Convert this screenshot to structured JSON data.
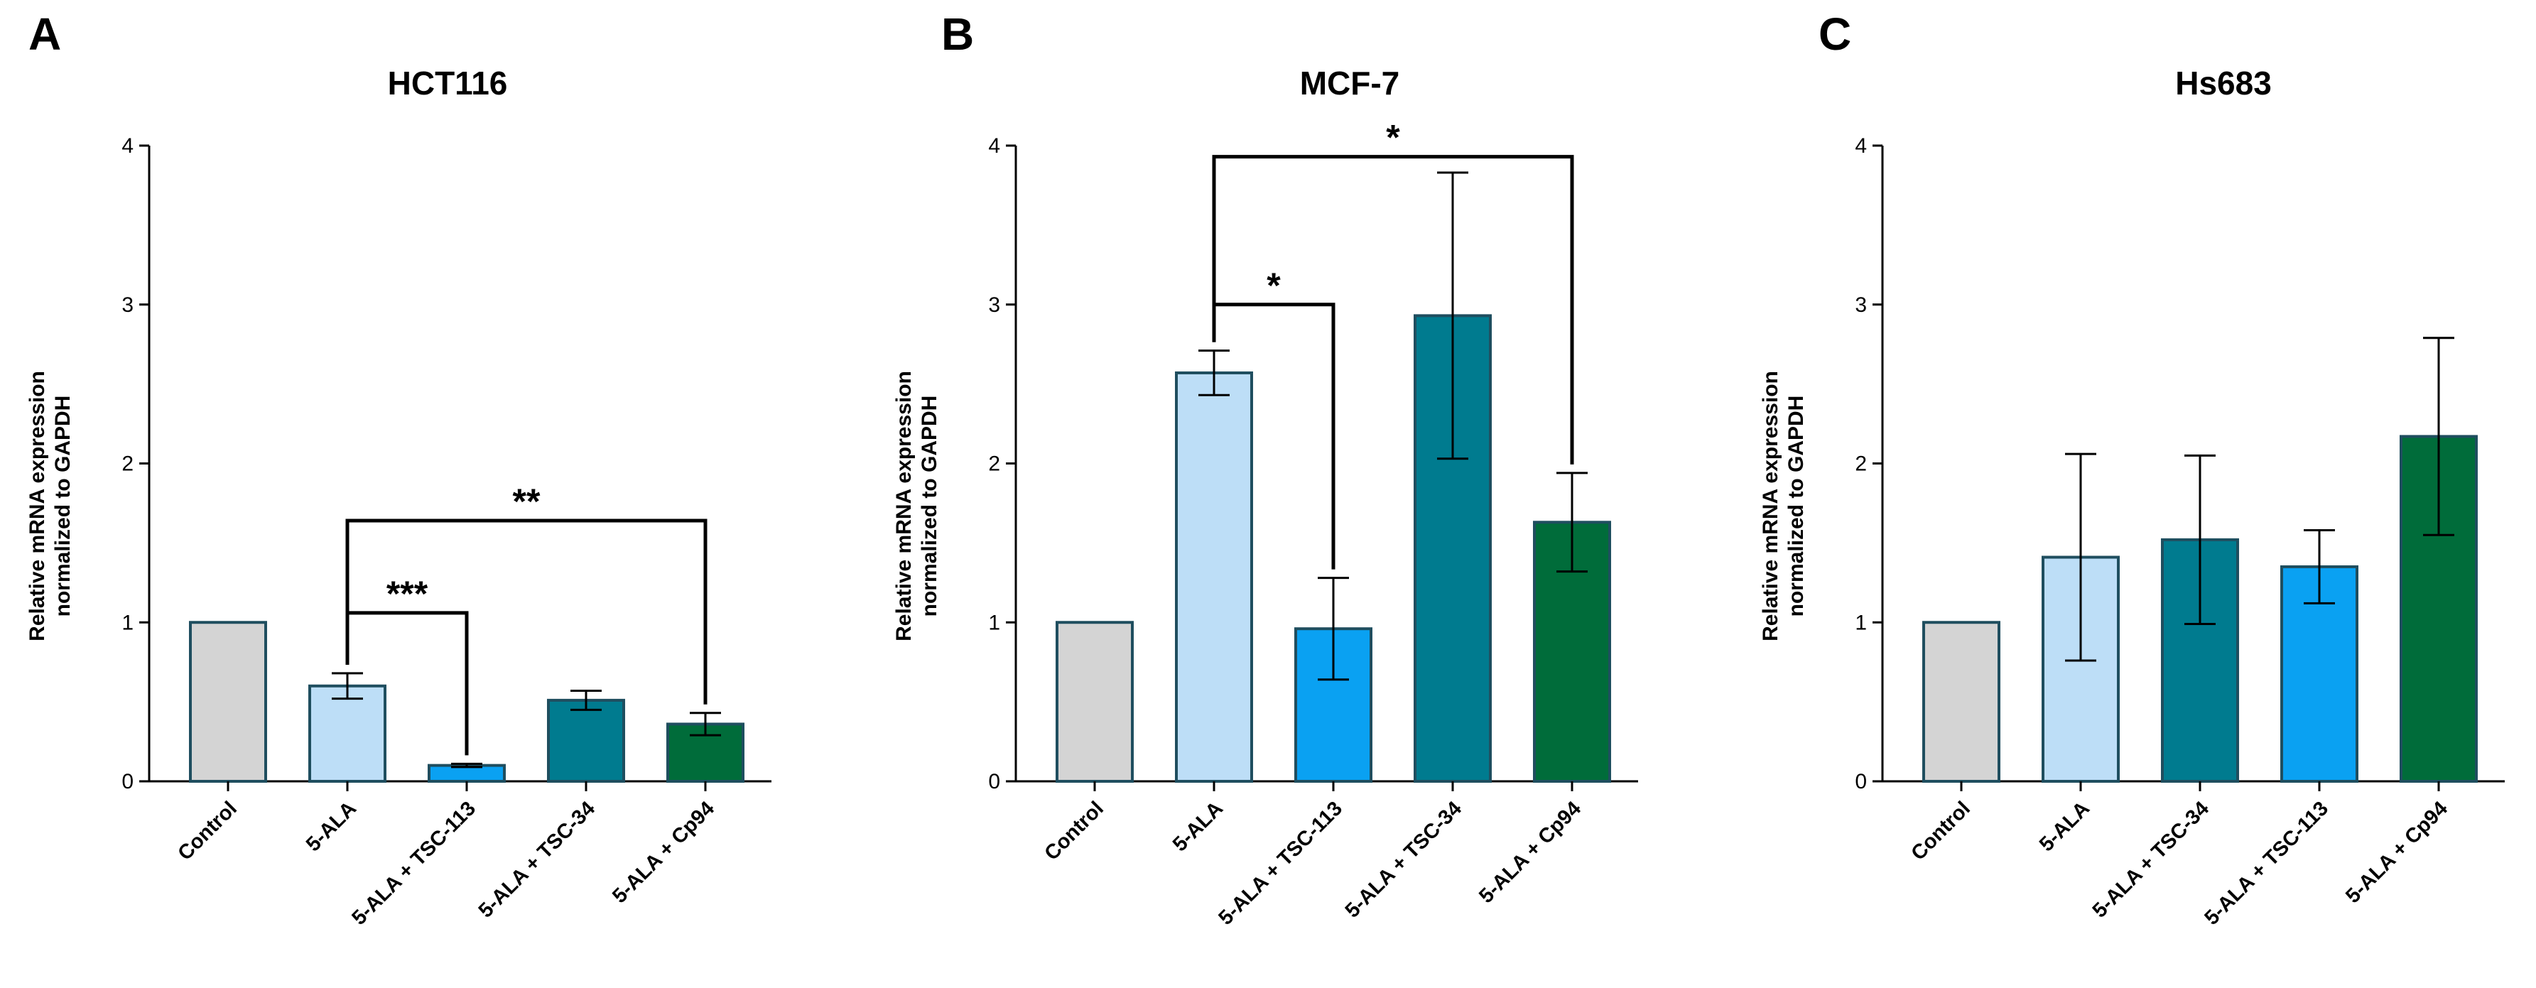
{
  "chart_data": [
    {
      "type": "bar",
      "panel": "A",
      "title": "HCT116",
      "ylabel": [
        "Relative mRNA expression",
        "normalized to GAPDH"
      ],
      "ylim": [
        0,
        4
      ],
      "yticks": [
        0,
        1,
        2,
        3,
        4
      ],
      "categories": [
        "Control",
        "5-ALA",
        "5-ALA + TSC-113",
        "5-ALA + TSC-34",
        "5-ALA + Cp94"
      ],
      "values": [
        1.0,
        0.6,
        0.1,
        0.51,
        0.36
      ],
      "errors": [
        0,
        0.08,
        0.01,
        0.06,
        0.07
      ],
      "colors": [
        "#d4d4d4",
        "#bddef7",
        "#0aa1f2",
        "#007b8f",
        "#006c3a"
      ],
      "significance": [
        {
          "from": 1,
          "to": 2,
          "label": "***",
          "y": 1.06
        },
        {
          "from": 1,
          "to": 4,
          "label": "**",
          "y": 1.64
        }
      ]
    },
    {
      "type": "bar",
      "panel": "B",
      "title": "MCF-7",
      "ylabel": [
        "Relative mRNA expression",
        "normalized to GAPDH"
      ],
      "ylim": [
        0,
        4
      ],
      "yticks": [
        0,
        1,
        2,
        3,
        4
      ],
      "categories": [
        "Control",
        "5-ALA",
        "5-ALA + TSC-113",
        "5-ALA + TSC-34",
        "5-ALA + Cp94"
      ],
      "values": [
        1.0,
        2.57,
        0.96,
        2.93,
        1.63
      ],
      "errors": [
        0,
        0.14,
        0.32,
        0.9,
        0.31
      ],
      "colors": [
        "#d4d4d4",
        "#bddef7",
        "#0aa1f2",
        "#007b8f",
        "#006c3a"
      ],
      "significance": [
        {
          "from": 1,
          "to": 2,
          "label": "*",
          "y": 3.0
        },
        {
          "from": 1,
          "to": 4,
          "label": "*",
          "y": 3.93
        }
      ]
    },
    {
      "type": "bar",
      "panel": "C",
      "title": "Hs683",
      "ylabel": [
        "Relative mRNA expression",
        "normalized to GAPDH"
      ],
      "ylim": [
        0,
        4
      ],
      "yticks": [
        0,
        1,
        2,
        3,
        4
      ],
      "categories": [
        "Control",
        "5-ALA",
        "5-ALA + TSC-34",
        "5-ALA + TSC-113",
        "5-ALA + Cp94"
      ],
      "values": [
        1.0,
        1.41,
        1.52,
        1.35,
        2.17
      ],
      "errors": [
        0,
        0.65,
        0.53,
        0.23,
        0.62
      ],
      "colors": [
        "#d4d4d4",
        "#bddef7",
        "#007b8f",
        "#0aa1f2",
        "#006c3a"
      ],
      "significance": []
    }
  ]
}
